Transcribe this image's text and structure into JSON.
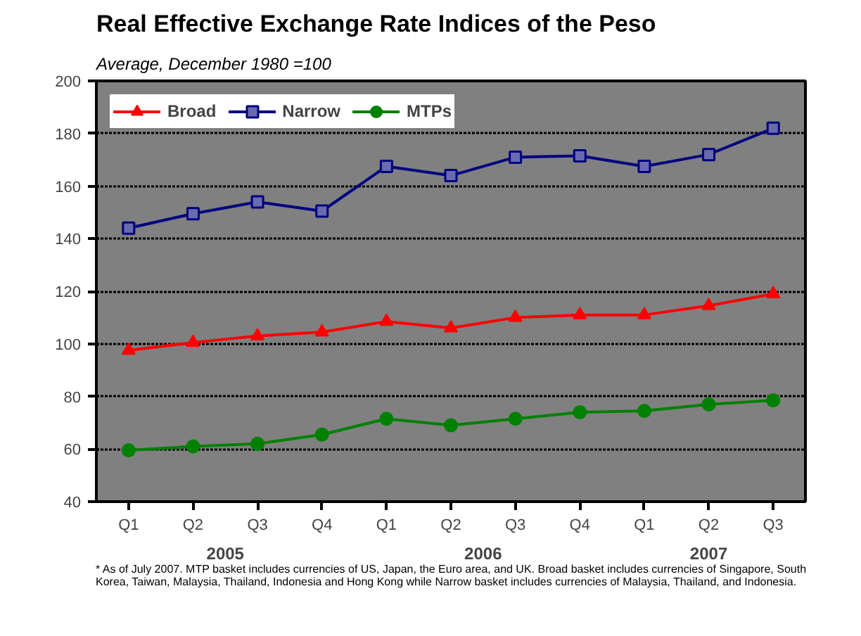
{
  "chart_data": {
    "type": "line",
    "title": "Real Effective Exchange Rate Indices of the Peso",
    "subtitle": "Average, December 1980 =100",
    "categories": [
      "Q1",
      "Q2",
      "Q3",
      "Q4",
      "Q1",
      "Q2",
      "Q3",
      "Q4",
      "Q1",
      "Q2",
      "Q3"
    ],
    "series": [
      {
        "name": "Broad",
        "color": "#ff0000",
        "marker": "triangle",
        "values": [
          97.5,
          100.5,
          103,
          104.5,
          108.5,
          106,
          110,
          111,
          111,
          114.5,
          119
        ]
      },
      {
        "name": "Narrow",
        "color": "#000080",
        "marker": "square",
        "values": [
          144,
          149.5,
          154,
          150.5,
          167.5,
          164,
          171,
          171.5,
          167.5,
          172,
          182
        ]
      },
      {
        "name": "MTPs",
        "color": "#008000",
        "marker": "circle",
        "values": [
          59.5,
          61,
          62,
          65.5,
          71.5,
          69,
          71.5,
          74,
          74.5,
          77,
          78.5
        ]
      }
    ],
    "ylim": [
      40,
      200
    ],
    "yticks": [
      40,
      60,
      80,
      100,
      120,
      140,
      160,
      180,
      200
    ],
    "grid": "y",
    "legend": "top left",
    "annotations": [
      "2005",
      "2006",
      "2007",
      "* As of July 2007. MTP basket includes currencies of US, Japan, the Euro area, and UK. Broad basket includes currencies of Singapore, South Korea, Taiwan, Malaysia, Thailand, Indonesia and Hong Kong while Narrow basket includes currencies of Malaysia, Thailand, and Indonesia."
    ]
  }
}
